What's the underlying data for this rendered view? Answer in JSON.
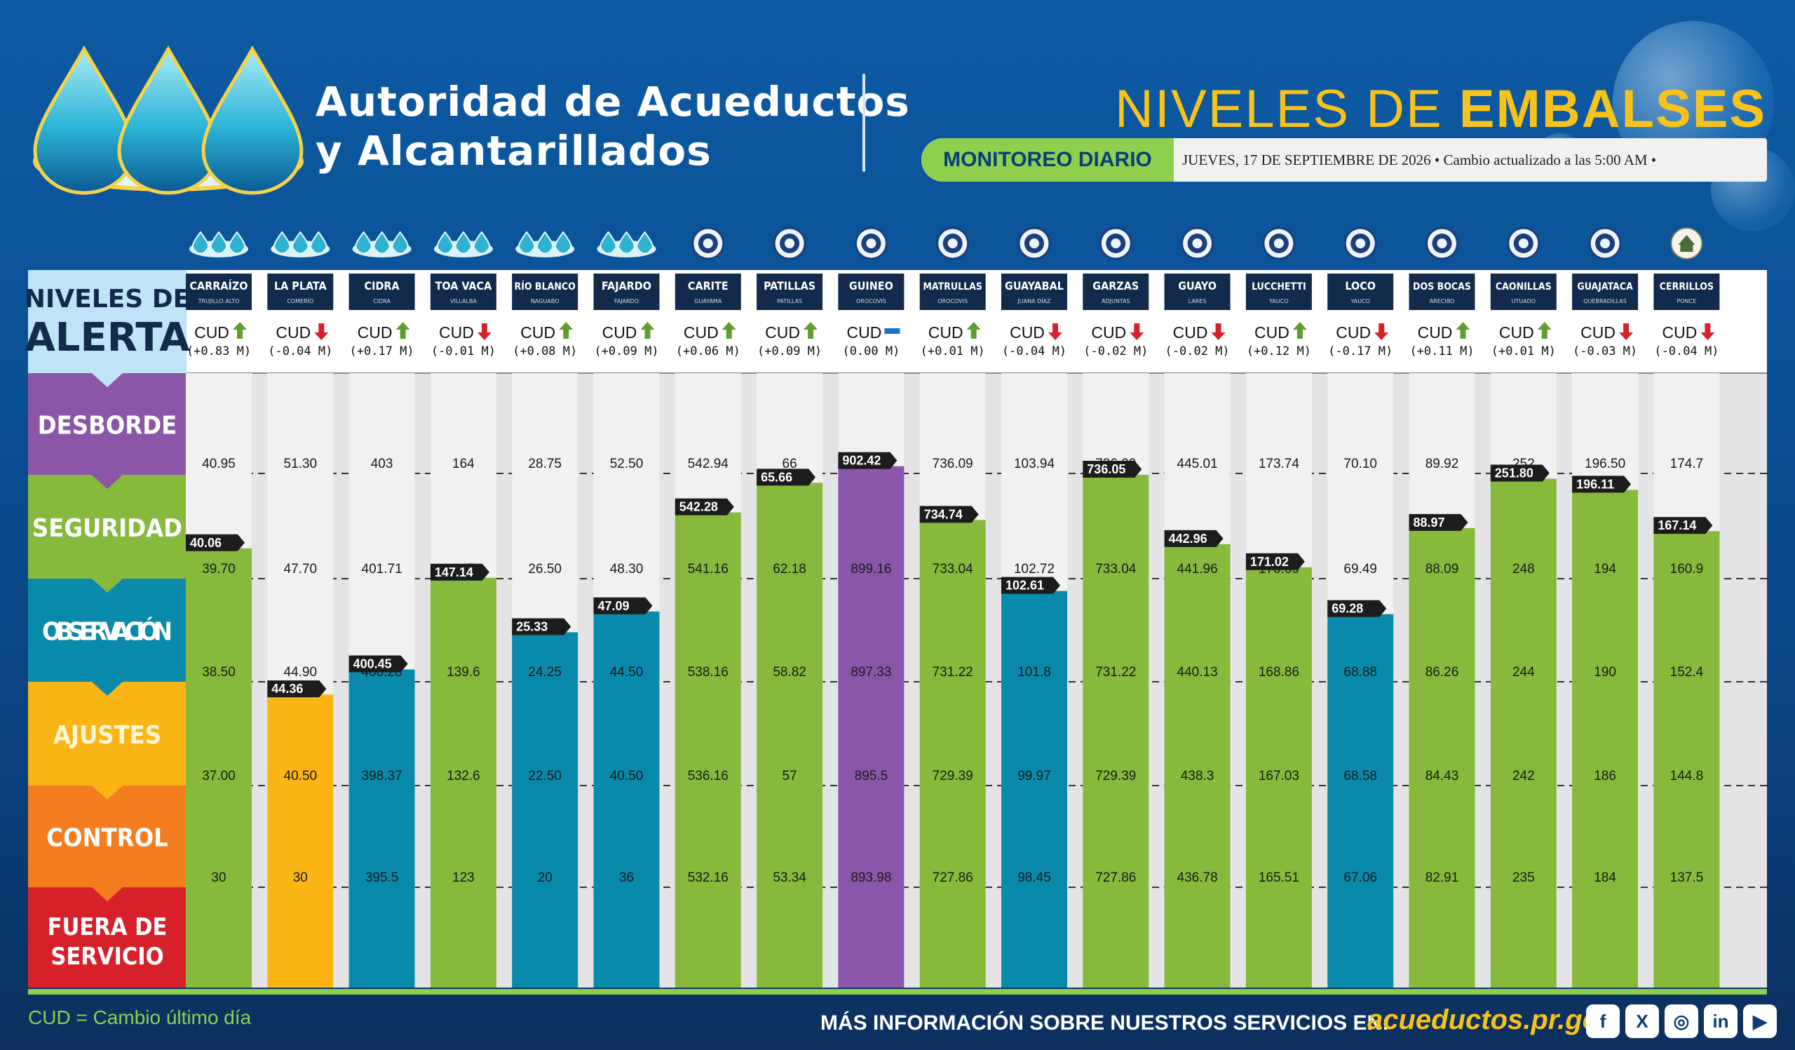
{
  "header": {
    "org_line1": "Autoridad de Acueductos",
    "org_line2": "y Alcantarillados",
    "title_part1": "NIVELES DE",
    "title_part2": "EMBALSES",
    "badge": "MONITOREO DIARIO",
    "date_text": "JUEVES, 17 DE SEPTIEMBRE DE 2026 • Cambio actualizado a las 5:00 AM •"
  },
  "colors": {
    "desborde": "#8b56a8",
    "seguridad": "#86b93c",
    "observacion": "#0a8aaa",
    "ajustes": "#fbb515",
    "control": "#f47d20",
    "fuera": "#d6212a",
    "dark_label": "#122a4c",
    "alerta_bg": "#bfe3f7",
    "up": "#5e9e2e",
    "down": "#d6212a",
    "flat": "#1a73c9"
  },
  "chart_data": {
    "type": "bar",
    "legend": {
      "header_line1": "NIVELES DE",
      "header_line2": "ALERTA",
      "levels": [
        {
          "key": "desborde",
          "label": "DESBORDE"
        },
        {
          "key": "seguridad",
          "label": "SEGURIDAD"
        },
        {
          "key": "observacion",
          "label": "OBSERVACIÓN"
        },
        {
          "key": "ajustes",
          "label": "AJUSTES"
        },
        {
          "key": "control",
          "label": "CONTROL"
        },
        {
          "key": "fuera",
          "label": "FUERA DE SERVICIO"
        }
      ]
    },
    "cud_label": "CUD",
    "reservoirs": [
      {
        "name": "CARRAÍZO",
        "town": "TRUJILLO ALTO",
        "icon": "water-waves-icon",
        "cud": "(+0.83 M)",
        "trend": "up",
        "level": 40.06,
        "status": "seguridad",
        "thresholds": [
          "40.95",
          "39.70",
          "38.50",
          "37.00",
          "30"
        ],
        "th_values": [
          40.95,
          39.7,
          38.5,
          37.0,
          30
        ]
      },
      {
        "name": "LA PLATA",
        "town": "COMERÍO",
        "icon": "water-waves-icon",
        "cud": "(-0.04 M)",
        "trend": "down",
        "level": 44.36,
        "status": "ajustes",
        "thresholds": [
          "51.30",
          "47.70",
          "44.90",
          "40.50",
          "30"
        ],
        "th_values": [
          51.3,
          47.7,
          44.9,
          40.5,
          30
        ]
      },
      {
        "name": "CIDRA",
        "town": "CIDRA",
        "icon": "water-waves-icon",
        "cud": "(+0.17 M)",
        "trend": "up",
        "level": 400.45,
        "status": "observacion",
        "thresholds": [
          "403",
          "401.71",
          "400.28",
          "398.37",
          "395.5"
        ],
        "th_values": [
          403,
          401.71,
          400.28,
          398.37,
          395.5
        ]
      },
      {
        "name": "TOA VACA",
        "town": "VILLALBA",
        "icon": "water-waves-icon",
        "cud": "(-0.01 M)",
        "trend": "down",
        "level": 147.14,
        "status": "seguridad",
        "thresholds": [
          "164",
          "147",
          "139.6",
          "132.6",
          "123"
        ],
        "th_values": [
          164,
          147,
          139.6,
          132.6,
          123
        ]
      },
      {
        "name": "RÍO BLANCO",
        "town": "NAGUABO",
        "icon": "water-waves-icon",
        "cud": "(+0.08 M)",
        "trend": "up",
        "level": 25.33,
        "status": "observacion",
        "thresholds": [
          "28.75",
          "26.50",
          "24.25",
          "22.50",
          "20"
        ],
        "th_values": [
          28.75,
          26.5,
          24.25,
          22.5,
          20
        ]
      },
      {
        "name": "FAJARDO",
        "town": "FAJARDO",
        "icon": "water-waves-icon",
        "cud": "(+0.09 M)",
        "trend": "up",
        "level": 47.09,
        "status": "observacion",
        "thresholds": [
          "52.50",
          "48.30",
          "44.50",
          "40.50",
          "36"
        ],
        "th_values": [
          52.5,
          48.3,
          44.5,
          40.5,
          36
        ]
      },
      {
        "name": "CARITE",
        "town": "GUAYAMA",
        "icon": "seal-icon",
        "cud": "(+0.06 M)",
        "trend": "up",
        "level": 542.28,
        "status": "seguridad",
        "thresholds": [
          "542.94",
          "541.16",
          "538.16",
          "536.16",
          "532.16"
        ],
        "th_values": [
          542.94,
          541.16,
          538.16,
          536.16,
          532.16
        ]
      },
      {
        "name": "PATILLAS",
        "town": "PATILLAS",
        "icon": "seal-icon",
        "cud": "(+0.09 M)",
        "trend": "up",
        "level": 65.66,
        "status": "seguridad",
        "thresholds": [
          "66",
          "62.18",
          "58.82",
          "57",
          "53.34"
        ],
        "th_values": [
          66,
          62.18,
          58.82,
          57,
          53.34
        ]
      },
      {
        "name": "GUINEO",
        "town": "OROCOVIS",
        "icon": "seal-icon",
        "cud": "(0.00 M)",
        "trend": "flat",
        "level": 902.42,
        "status": "desborde",
        "thresholds": [
          "902.21",
          "899.16",
          "897.33",
          "895.5",
          "893.98"
        ],
        "th_values": [
          902.21,
          899.16,
          897.33,
          895.5,
          893.98
        ]
      },
      {
        "name": "MATRULLAS",
        "town": "OROCOVIS",
        "icon": "seal-icon",
        "cud": "(+0.01 M)",
        "trend": "up",
        "level": 734.74,
        "status": "seguridad",
        "thresholds": [
          "736.09",
          "733.04",
          "731.22",
          "729.39",
          "727.86"
        ],
        "th_values": [
          736.09,
          733.04,
          731.22,
          729.39,
          727.86
        ]
      },
      {
        "name": "GUAYABAL",
        "town": "JUANA DÍAZ",
        "icon": "seal-icon",
        "cud": "(-0.04 M)",
        "trend": "down",
        "level": 102.61,
        "status": "observacion",
        "thresholds": [
          "103.94",
          "102.72",
          "101.8",
          "99.97",
          "98.45"
        ],
        "th_values": [
          103.94,
          102.72,
          101.8,
          99.97,
          98.45
        ]
      },
      {
        "name": "GARZAS",
        "town": "ADJUNTAS",
        "icon": "seal-icon",
        "cud": "(-0.02 M)",
        "trend": "down",
        "level": 736.05,
        "status": "seguridad",
        "thresholds": [
          "736.09",
          "733.04",
          "731.22",
          "729.39",
          "727.86"
        ],
        "th_values": [
          736.09,
          733.04,
          731.22,
          729.39,
          727.86
        ]
      },
      {
        "name": "GUAYO",
        "town": "LARES",
        "icon": "seal-icon",
        "cud": "(-0.02 M)",
        "trend": "down",
        "level": 442.96,
        "status": "seguridad",
        "thresholds": [
          "445.01",
          "441.96",
          "440.13",
          "438.3",
          "436.78"
        ],
        "th_values": [
          445.01,
          441.96,
          440.13,
          438.3,
          436.78
        ]
      },
      {
        "name": "LUCCHETTI",
        "town": "YAUCO",
        "icon": "seal-icon",
        "cud": "(+0.12 M)",
        "trend": "up",
        "level": 171.02,
        "status": "seguridad",
        "thresholds": [
          "173.74",
          "170.69",
          "168.86",
          "167.03",
          "165.51"
        ],
        "th_values": [
          173.74,
          170.69,
          168.86,
          167.03,
          165.51
        ]
      },
      {
        "name": "LOCO",
        "town": "YAUCO",
        "icon": "seal-icon",
        "cud": "(-0.17 M)",
        "trend": "down",
        "level": 69.28,
        "status": "observacion",
        "thresholds": [
          "70.10",
          "69.49",
          "68.88",
          "68.58",
          "67.06"
        ],
        "th_values": [
          70.1,
          69.49,
          68.88,
          68.58,
          67.06
        ]
      },
      {
        "name": "DOS BOCAS",
        "town": "ARECIBO",
        "icon": "seal-icon",
        "cud": "(+0.11 M)",
        "trend": "up",
        "level": 88.97,
        "status": "seguridad",
        "thresholds": [
          "89.92",
          "88.09",
          "86.26",
          "84.43",
          "82.91"
        ],
        "th_values": [
          89.92,
          88.09,
          86.26,
          84.43,
          82.91
        ]
      },
      {
        "name": "CAONILLAS",
        "town": "UTUADO",
        "icon": "seal-icon",
        "cud": "(+0.01 M)",
        "trend": "up",
        "level": 251.8,
        "status": "seguridad",
        "thresholds": [
          "252",
          "248",
          "244",
          "242",
          "235"
        ],
        "th_values": [
          252,
          248,
          244,
          242,
          235
        ]
      },
      {
        "name": "GUAJATACA",
        "town": "QUEBRADILLAS",
        "icon": "seal-icon",
        "cud": "(-0.03 M)",
        "trend": "down",
        "level": 196.11,
        "status": "seguridad",
        "thresholds": [
          "196.50",
          "194",
          "190",
          "186",
          "184"
        ],
        "th_values": [
          196.5,
          194,
          190,
          186,
          184
        ]
      },
      {
        "name": "CERRILLOS",
        "town": "PONCE",
        "icon": "house-seal-icon",
        "cud": "(-0.04 M)",
        "trend": "down",
        "level": 167.14,
        "status": "seguridad",
        "thresholds": [
          "174.7",
          "160.9",
          "152.4",
          "144.8",
          "137.5"
        ],
        "th_values": [
          174.7,
          160.9,
          152.4,
          144.8,
          137.5
        ]
      }
    ]
  },
  "footer": {
    "note": "CUD = Cambio último día",
    "info": "MÁS INFORMACIÓN SOBRE NUESTROS SERVICIOS EN:",
    "link": "acueductos.pr.gov",
    "social": [
      {
        "icon": "facebook-icon",
        "glyph": "f"
      },
      {
        "icon": "x-icon",
        "glyph": "X"
      },
      {
        "icon": "instagram-icon",
        "glyph": "◎"
      },
      {
        "icon": "linkedin-icon",
        "glyph": "in"
      },
      {
        "icon": "youtube-icon",
        "glyph": "▶"
      }
    ]
  }
}
